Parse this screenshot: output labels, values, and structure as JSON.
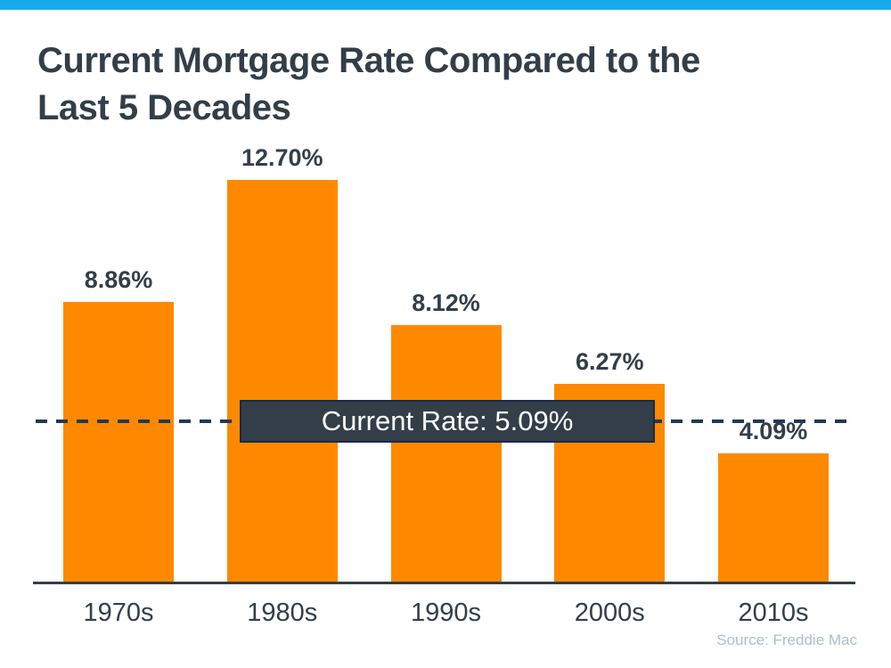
{
  "page": {
    "title_lines": [
      "Current Mortgage Rate Compared to the",
      "Last 5 Decades"
    ],
    "source": "Source: Freddie Mac"
  },
  "colors": {
    "accent_blue": "#18ABEC",
    "bar_orange": "#FE8900",
    "text_dark": "#333E48",
    "axis_dark": "#333F48",
    "dashed_navy": "#1F3A57",
    "box_bg": "#333E48",
    "box_border": "#19294A",
    "box_text": "#FFFFFF",
    "source_gray": "#AFBEC9"
  },
  "chart_data": {
    "type": "bar",
    "title": "Current Mortgage Rate Compared to the Last 5 Decades",
    "categories": [
      "1970s",
      "1980s",
      "1990s",
      "2000s",
      "2010s"
    ],
    "values": [
      8.86,
      12.7,
      8.12,
      6.27,
      4.09
    ],
    "value_labels": [
      "8.86%",
      "12.70%",
      "8.12%",
      "6.27%",
      "4.09%"
    ],
    "xlabel": "",
    "ylabel": "",
    "ylim": [
      0,
      13.9
    ],
    "grid": false,
    "legend": "none",
    "reference_line": {
      "value": 5.09,
      "label": "Current Rate: 5.09%"
    },
    "source": "Source: Freddie Mac"
  }
}
